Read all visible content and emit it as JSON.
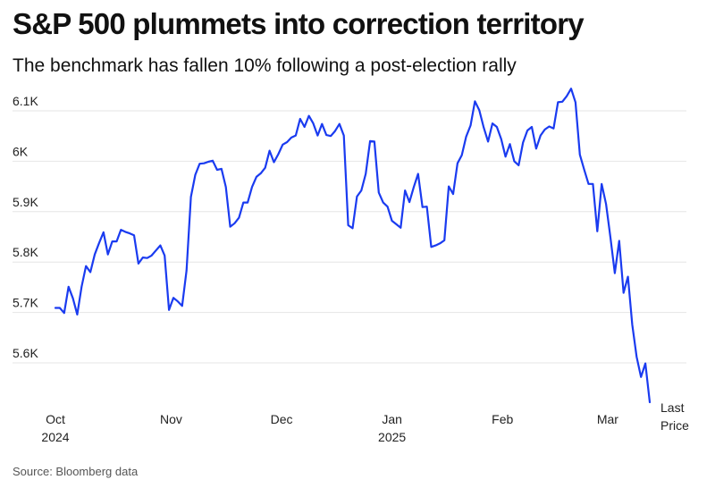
{
  "chart_data": {
    "type": "line",
    "title": "S&P 500 plummets into correction territory",
    "subtitle": "The benchmark has fallen 10% following a post-election rally",
    "source": "Source: Bloomberg data",
    "series_color": "#1a3bf0",
    "ylim": [
      5500,
      6130
    ],
    "yticks": [
      {
        "value": 5600,
        "label": "5.6K"
      },
      {
        "value": 5700,
        "label": "5.7K"
      },
      {
        "value": 5800,
        "label": "5.8K"
      },
      {
        "value": 5900,
        "label": "5.9K"
      },
      {
        "value": 6000,
        "label": "6K"
      },
      {
        "value": 6100,
        "label": "6.1K"
      }
    ],
    "xlim": [
      0,
      113
    ],
    "xticks": [
      {
        "value": 0,
        "line1": "Oct",
        "line2": "2024"
      },
      {
        "value": 22,
        "line1": "Nov",
        "line2": ""
      },
      {
        "value": 43,
        "line1": "Dec",
        "line2": ""
      },
      {
        "value": 64,
        "line1": "Jan",
        "line2": "2025"
      },
      {
        "value": 85,
        "line1": "Feb",
        "line2": ""
      },
      {
        "value": 105,
        "line1": "Mar",
        "line2": ""
      }
    ],
    "last_label": [
      "Last",
      "Price"
    ],
    "values": [
      5709,
      5709,
      5699,
      5751,
      5728,
      5696,
      5751,
      5792,
      5780,
      5815,
      5838,
      5859,
      5815,
      5841,
      5841,
      5864,
      5860,
      5857,
      5853,
      5797,
      5809,
      5808,
      5813,
      5823,
      5833,
      5813,
      5705,
      5729,
      5722,
      5713,
      5783,
      5929,
      5973,
      5995,
      5996,
      5999,
      6001,
      5983,
      5985,
      5949,
      5870,
      5877,
      5888,
      5918,
      5918,
      5949,
      5969,
      5976,
      5987,
      6021,
      5998,
      6014,
      6033,
      6038,
      6047,
      6051,
      6084,
      6068,
      6090,
      6075,
      6051,
      6074,
      6052,
      6050,
      6060,
      6074,
      6051,
      5873,
      5867,
      5930,
      5942,
      5975,
      6040,
      6039,
      5938,
      5918,
      5910,
      5882,
      5875,
      5868,
      5942,
      5919,
      5949,
      5975,
      5909,
      5910,
      5830,
      5833,
      5837,
      5843,
      5950,
      5935,
      5996,
      6012,
      6049,
      6071,
      6119,
      6101,
      6067,
      6039,
      6075,
      6068,
      6044,
      6009,
      6034,
      6000,
      5992,
      6037,
      6061,
      6068,
      6025,
      6051,
      6063,
      6069,
      6065,
      6117,
      6118,
      6129,
      6144,
      6117,
      6013,
      5983,
      5955,
      5955,
      5861,
      5955,
      5915,
      5849,
      5778,
      5842,
      5739,
      5771,
      5676,
      5612,
      5572,
      5599,
      5522
    ]
  }
}
